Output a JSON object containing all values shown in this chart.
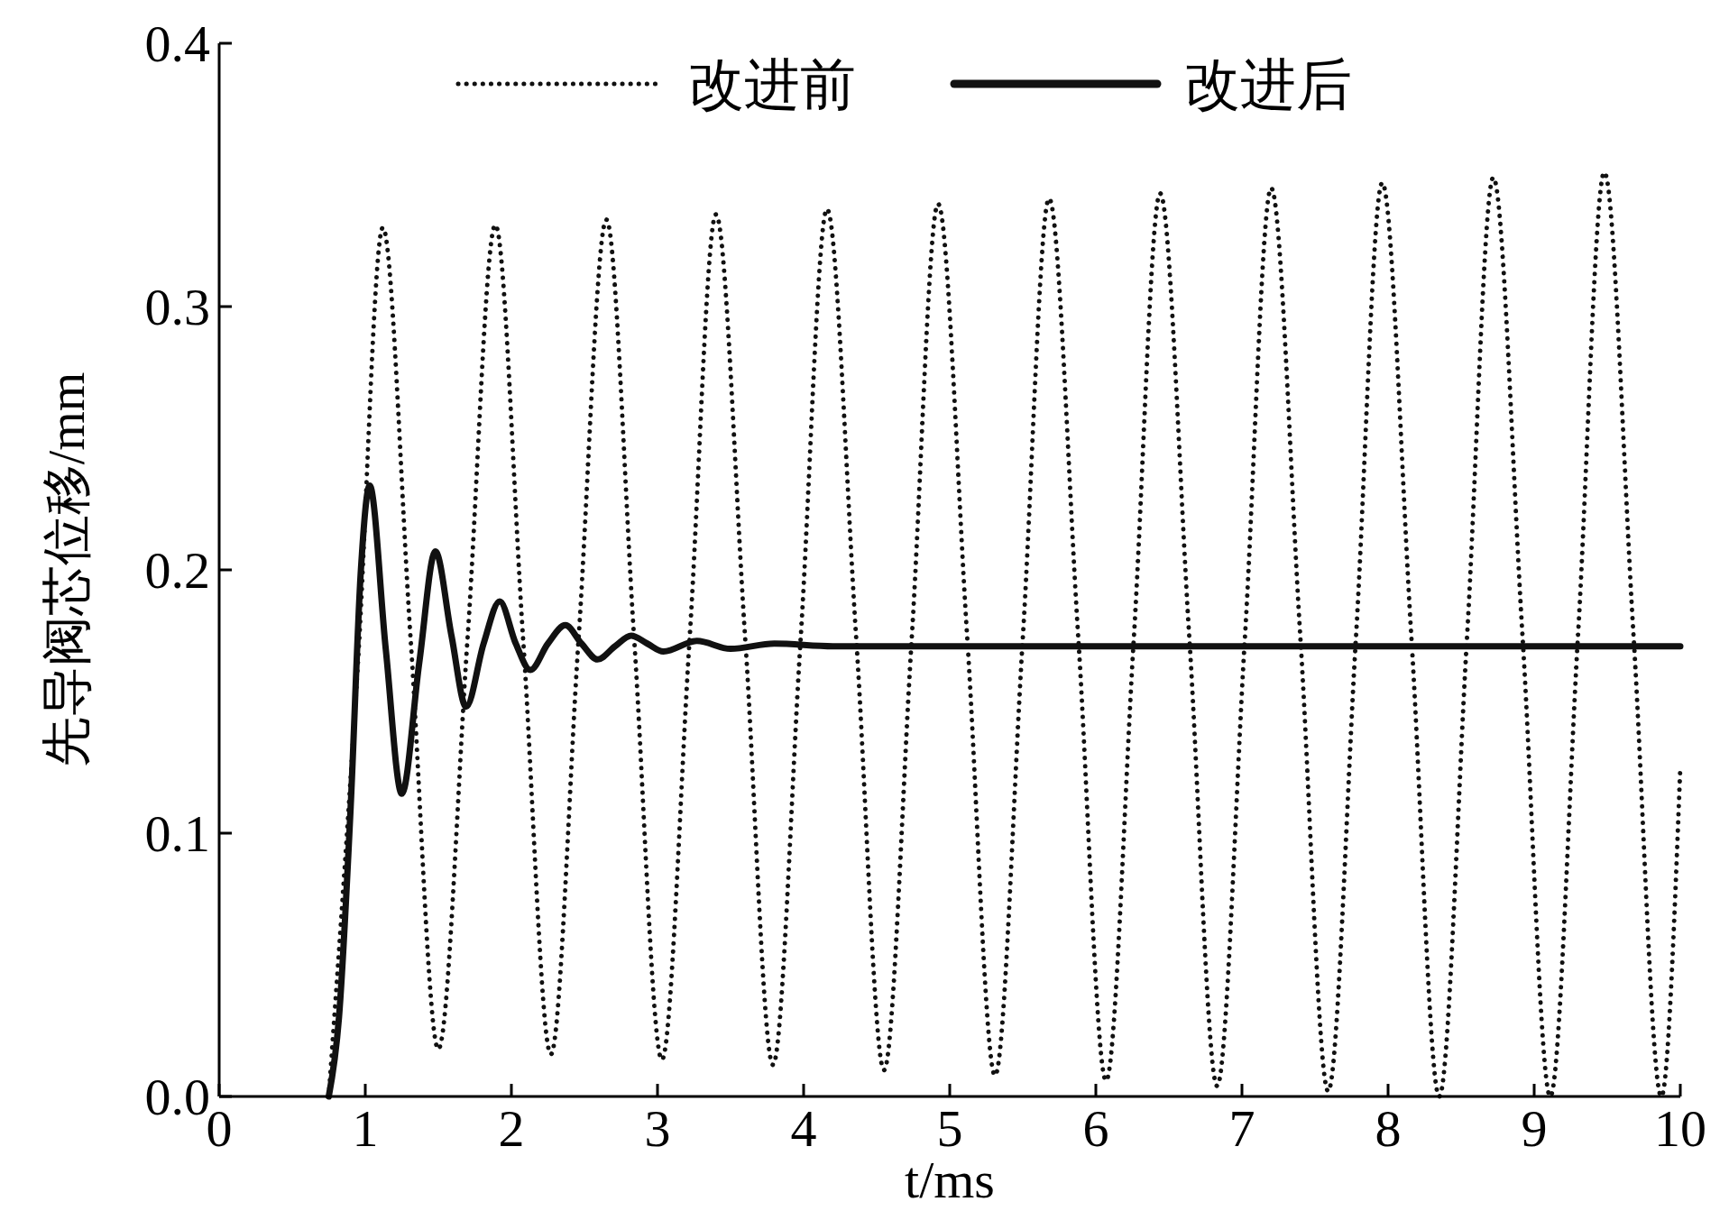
{
  "chart_data": {
    "type": "line",
    "xlabel": "t/ms",
    "ylabel": "先导阀芯位移/mm",
    "xlim": [
      0,
      10
    ],
    "ylim": [
      0,
      0.4
    ],
    "xticks": [
      0,
      1,
      2,
      3,
      4,
      5,
      6,
      7,
      8,
      9,
      10
    ],
    "yticks": [
      {
        "value": 0,
        "label": "0.0"
      },
      {
        "value": 0.1,
        "label": "0.1"
      },
      {
        "value": 0.2,
        "label": "0.2"
      },
      {
        "value": 0.3,
        "label": "0.3"
      },
      {
        "value": 0.4,
        "label": "0.4"
      }
    ],
    "legend": "top",
    "grid": false,
    "series": [
      {
        "name": "改进前",
        "color": "#111111",
        "line_style": "dotted",
        "x": [
          0.75,
          0.95,
          1.12,
          1.31,
          1.5,
          1.7,
          1.89,
          2.08,
          2.27,
          2.46,
          2.65,
          2.84,
          3.03,
          3.22,
          3.4,
          3.6,
          3.79,
          3.98,
          4.16,
          4.36,
          4.55,
          4.74,
          4.92,
          5.12,
          5.31,
          5.5,
          5.68,
          5.88,
          6.07,
          6.26,
          6.44,
          6.64,
          6.83,
          7.02,
          7.2,
          7.4,
          7.59,
          7.78,
          7.96,
          8.16,
          8.35,
          8.54,
          8.72,
          8.92,
          9.11,
          9.3,
          9.48,
          9.68,
          9.87,
          10
        ],
        "values": [
          0,
          0.165,
          0.33,
          0.174,
          0.018,
          0.174,
          0.331,
          0.174,
          0.016,
          0.174,
          0.333,
          0.174,
          0.014,
          0.174,
          0.335,
          0.174,
          0.012,
          0.174,
          0.337,
          0.174,
          0.01,
          0.174,
          0.339,
          0.174,
          0.008,
          0.174,
          0.341,
          0.174,
          0.006,
          0.174,
          0.343,
          0.174,
          0.004,
          0.174,
          0.345,
          0.174,
          0.002,
          0.174,
          0.347,
          0.174,
          0,
          0.174,
          0.349,
          0.175,
          0,
          0.175,
          0.351,
          0.175,
          0,
          0.125
        ]
      },
      {
        "name": "改进后",
        "color": "#111111",
        "line_style": "solid",
        "x": [
          0.75,
          0.82,
          0.9,
          0.97,
          1.03,
          1.14,
          1.25,
          1.37,
          1.48,
          1.59,
          1.69,
          1.81,
          1.92,
          2.03,
          2.13,
          2.25,
          2.37,
          2.48,
          2.59,
          2.71,
          2.82,
          2.93,
          3.04,
          3.27,
          3.5,
          3.8,
          4.2,
          10
        ],
        "values": [
          0,
          0.03,
          0.11,
          0.2,
          0.232,
          0.17,
          0.115,
          0.165,
          0.207,
          0.175,
          0.148,
          0.172,
          0.188,
          0.172,
          0.162,
          0.172,
          0.179,
          0.172,
          0.166,
          0.171,
          0.175,
          0.172,
          0.169,
          0.173,
          0.17,
          0.172,
          0.171,
          0.171
        ]
      }
    ]
  }
}
